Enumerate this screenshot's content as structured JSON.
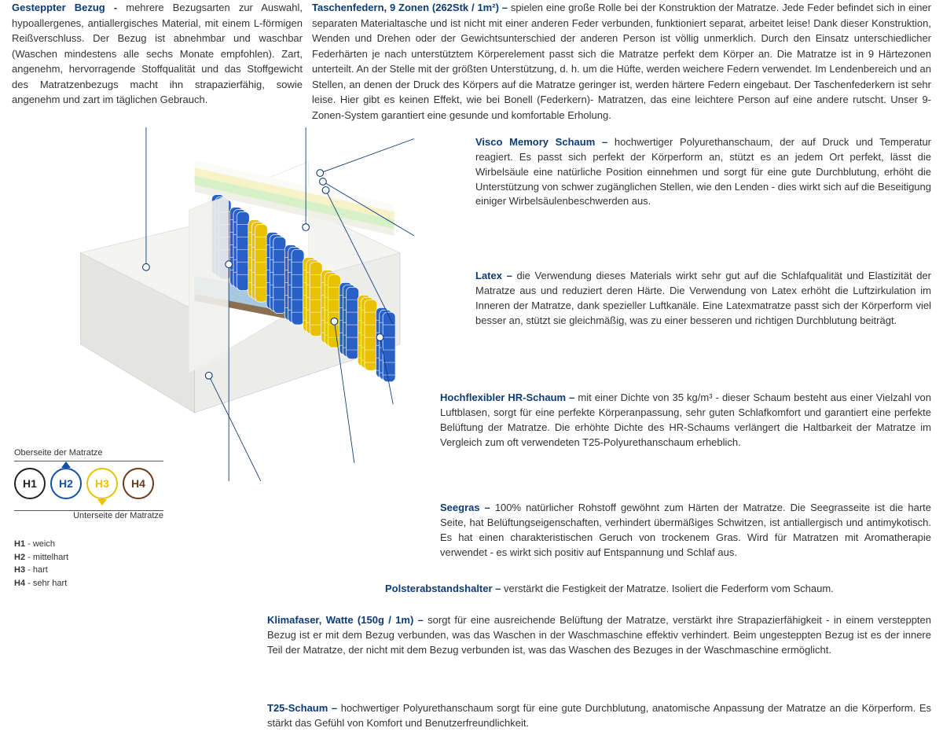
{
  "colors": {
    "heading": "#0d3b75",
    "text": "#333333",
    "line": "#0d3b75",
    "h1": "#222222",
    "h2": "#1050a8",
    "h3": "#e8c100",
    "h4": "#6b3a1a"
  },
  "top": {
    "left_heading": "Gesteppter Bezug - ",
    "left_body": "mehrere Bezugsarten zur Auswahl, hypoallergenes, antiallergisches Material, mit einem L-förmigen Reißverschluss. Der Bezug ist abnehmbar und waschbar (Waschen mindestens alle sechs Monate empfohlen). Zart, angenehm, hervorragende Stoffqualität und das Stoffgewicht des Matratzenbezugs macht ihn strapazierfähig, sowie angenehm und zart im täglichen Gebrauch.",
    "right_heading": "Taschenfedern, 9 Zonen (262Stk / 1m²) – ",
    "right_body": "spielen eine große Rolle bei der Konstruktion der Matratze. Jede Feder befindet sich in einer separaten Materialtasche und ist nicht mit einer anderen Feder verbunden, funktioniert separat, arbeitet leise! Dank dieser Konstruktion, Wenden und Drehen oder der Gewichtsunterschied der anderen Person ist völlig unmerklich. Durch den Einsatz unterschiedlicher Federhärten je nach unterstütztem Körperelement passt sich die Matratze perfekt dem Körper an. Die Matratze ist in 9 Härtezonen unterteilt. An der Stelle mit der größten Unterstützung, d. h. um die Hüfte, werden weichere Federn verwendet. Im Lendenbereich und an Stellen, an denen der Druck des Körpers auf die Matratze geringer ist, werden härtere Federn eingebaut. Der Taschenfederkern ist sehr leise. Hier gibt es keinen Effekt, wie bei Bonell (Federkern)- Matratzen, das eine leichtere Person auf eine andere rutscht. Unser 9-Zonen-System garantiert eine gesunde und komfortable Erholung."
  },
  "blocks": {
    "visco_h": "Visco Memory Schaum – ",
    "visco_b": "hochwertiger Polyurethanschaum, der auf Druck und Temperatur reagiert. Es passt sich perfekt der Körperform an, stützt es an jedem Ort perfekt, lässt die Wirbelsäule eine natürliche Position einnehmen und sorgt für eine gute Durchblutung, erhöht die Unterstützung von schwer zugänglichen Stellen, wie den Lenden - dies wirkt sich auf die Beseitigung einiger Wirbelsäulenbeschwerden aus.",
    "latex_h": "Latex – ",
    "latex_b": "die Verwendung dieses Materials wirkt sehr gut auf die Schlafqualität und Elastizität der Matratze aus und reduziert deren Härte. Die Verwendung von Latex erhöht die Luftzirkulation im Inneren der Matratze, dank spezieller Luftkanäle. Eine Latexmatratze passt sich der Körperform viel besser an, stützt sie gleichmäßig, was zu einer besseren und richtigen Durchblutung beiträgt.",
    "hr_h": "Hochflexibler HR-Schaum – ",
    "hr_mid": "mit einer Dichte von 35 kg/m³ - ",
    "hr_b": "dieser Schaum besteht aus einer Vielzahl von Luftblasen, sorgt für eine perfekte Körperanpassung, sehr guten Schlafkomfort und garantiert eine perfekte Belüftung der Matratze. Die erhöhte Dichte des HR-Schaums verlängert die Haltbarkeit der Matratze im Vergleich zum oft verwendeten T25-Polyurethanschaum erheblich.",
    "seegras_h": "Seegras – ",
    "seegras_b": "100% natürlicher Rohstoff gewöhnt zum Härten der Matratze. Die Seegrasseite ist die harte Seite, hat Belüftungseigenschaften, verhindert übermäßiges Schwitzen, ist antiallergisch und antimykotisch. Es hat einen charakteristischen Geruch von trockenem Gras. Wird für Matratzen mit Aromatherapie verwendet - es wirkt sich positiv auf Entspannung und Schlaf aus.",
    "polster_h": "Polsterabstandshalter – ",
    "polster_b": "verstärkt die Festigkeit der Matratze. Isoliert die Federform vom Schaum.",
    "klima_h": "Klimafaser, Watte (150g / 1m) – ",
    "klima_b": "sorgt für eine ausreichende Belüftung der Matratze, verstärkt ihre Strapazierfähigkeit - in einem versteppten Bezug ist er mit dem Bezug verbunden, was das Waschen in der Waschmaschine effektiv verhindert. Beim ungesteppten Bezug ist es der innere Teil der Matratze, der nicht mit dem Bezug verbunden ist, was das Waschen des Bezuges in der Waschmaschine ermöglicht.",
    "t25_h": "T25-Schaum – ",
    "t25_b": "hochwertiger Polyurethanschaum sorgt für eine gute Durchblutung, anatomische Anpassung der Matratze an die Körperform. Es stärkt das Gefühl von Komfort und Benutzerfreundlichkeit."
  },
  "legend": {
    "top_label": "Oberseite der Matratze",
    "bottom_label": "Unterseite der Matratze",
    "circles": [
      {
        "label": "H1",
        "color": "#222222"
      },
      {
        "label": "H2",
        "color": "#1050a8"
      },
      {
        "label": "H3",
        "color": "#e8c100"
      },
      {
        "label": "H4",
        "color": "#6b3a1a"
      }
    ],
    "items": [
      {
        "k": "H1",
        "v": " - weich"
      },
      {
        "k": "H2",
        "v": " - mittelhart"
      },
      {
        "k": "H3",
        "v": " - hart"
      },
      {
        "k": "H4",
        "v": " - sehr hart"
      }
    ]
  },
  "mattress": {
    "cover": "#f4f4f2",
    "cover_shade": "#e4e4e0",
    "foam_top": "#fafaf6",
    "latex": "#f8f2c8",
    "hr": "#d8f0c8",
    "visco": "#f0f0e8",
    "spring_blue": "#2860c8",
    "spring_yellow": "#e8c100",
    "base": "#a8c8e0",
    "coco": "#8a7050"
  }
}
